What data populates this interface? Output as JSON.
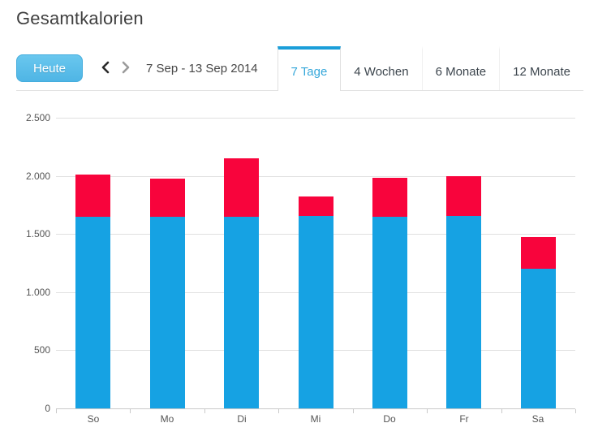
{
  "header": {
    "title": "Gesamtkalorien"
  },
  "toolbar": {
    "today_label": "Heute",
    "prev_icon": "chevron-left",
    "next_icon": "chevron-right",
    "date_range": "7 Sep - 13 Sep 2014"
  },
  "tabs": [
    {
      "label": "7 Tage",
      "active": true
    },
    {
      "label": "4 Wochen",
      "active": false
    },
    {
      "label": "6 Monate",
      "active": false
    },
    {
      "label": "12 Monate",
      "active": false
    }
  ],
  "colors": {
    "bar_blue": "#16a2e3",
    "bar_red": "#f8043c",
    "accent_button_blue": "#58bee9",
    "tab_active_text": "#35a7da",
    "tab_active_border": "#1a9ed9",
    "grid": "#e0e0e0",
    "axis": "#c9c9c9",
    "text_dark": "#3f3f3f",
    "text_axis": "#555555"
  },
  "chart_data": {
    "type": "bar",
    "stacked": true,
    "title": "Gesamtkalorien",
    "xlabel": "",
    "ylabel": "",
    "categories": [
      "So",
      "Mo",
      "Di",
      "Mi",
      "Do",
      "Fr",
      "Sa"
    ],
    "series": [
      {
        "name": "blue-segment",
        "color": "#16a2e3",
        "values": [
          1650,
          1650,
          1650,
          1650,
          1650,
          1650,
          1200
        ]
      },
      {
        "name": "red-segment",
        "color": "#f8043c",
        "values": [
          360,
          325,
          500,
          170,
          335,
          345,
          270
        ]
      }
    ],
    "stack_totals": [
      2010,
      1975,
      2150,
      1820,
      1985,
      1995,
      1470
    ],
    "ylim": [
      0,
      2500
    ],
    "yticks": [
      0,
      500,
      1000,
      1500,
      2000,
      2500
    ],
    "ytick_labels": [
      "0",
      "500",
      "1.000",
      "1.500",
      "2.000",
      "2.500"
    ],
    "grid": true,
    "legend": "none"
  }
}
